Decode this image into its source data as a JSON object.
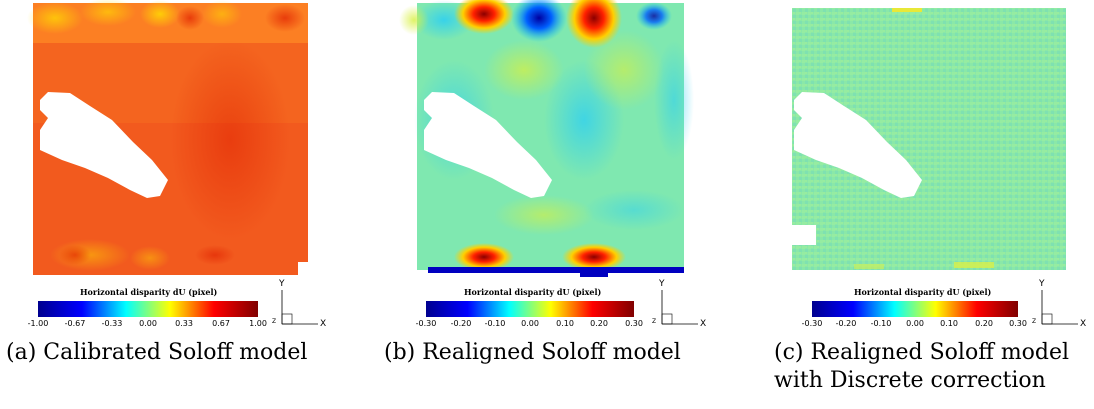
{
  "panels": [
    {
      "colorbar_title": "Horizontal disparity dU (pixel)",
      "ticks": [
        "-1.00",
        "-0.67",
        "-0.33",
        "0.00",
        "0.33",
        "0.67",
        "1.00"
      ],
      "axis_y": "Y",
      "axis_x": "X",
      "axis_z": "Z",
      "caption": "(a) Calibrated Soloff model"
    },
    {
      "colorbar_title": "Horizontal disparity dU (pixel)",
      "ticks": [
        "-0.30",
        "-0.20",
        "-0.10",
        "0.00",
        "0.10",
        "0.20",
        "0.30"
      ],
      "axis_y": "Y",
      "axis_x": "X",
      "axis_z": "Z",
      "caption": "(b) Realigned Soloff model"
    },
    {
      "colorbar_title": "Horizontal disparity dU (pixel)",
      "ticks": [
        "-0.30",
        "-0.20",
        "-0.10",
        "0.00",
        "0.10",
        "0.20",
        "0.30"
      ],
      "axis_y": "Y",
      "axis_x": "X",
      "axis_z": "Z",
      "caption_line1": "(c) Realigned Soloff model",
      "caption_line2": "with Discrete correction"
    }
  ],
  "colors": {
    "colormap": [
      "#00008f",
      "#0000ff",
      "#00ffff",
      "#ffff00",
      "#ff0000",
      "#800000"
    ]
  }
}
